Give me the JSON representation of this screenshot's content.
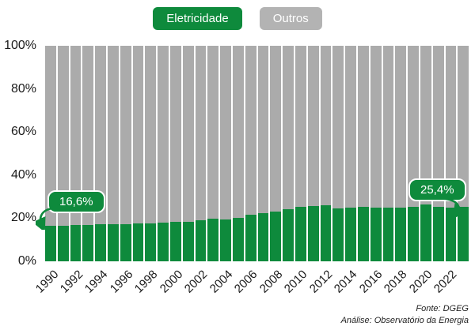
{
  "chart_data": {
    "type": "bar",
    "stacked": true,
    "unit": "%",
    "x": [
      1990,
      1991,
      1992,
      1993,
      1994,
      1995,
      1996,
      1997,
      1998,
      1999,
      2000,
      2001,
      2002,
      2003,
      2004,
      2005,
      2006,
      2007,
      2008,
      2009,
      2010,
      2011,
      2012,
      2013,
      2014,
      2015,
      2016,
      2017,
      2018,
      2019,
      2020,
      2021,
      2022,
      2023
    ],
    "series": [
      {
        "name": "Eletricidade",
        "color": "#0e8a3c",
        "values": [
          16.6,
          16.6,
          16.9,
          17.0,
          17.3,
          17.4,
          17.2,
          17.5,
          17.6,
          17.9,
          18.2,
          18.5,
          19.2,
          19.7,
          19.6,
          20.0,
          21.5,
          22.5,
          23.1,
          24.1,
          25.2,
          25.5,
          26.0,
          24.6,
          24.8,
          25.2,
          24.9,
          24.9,
          24.9,
          25.2,
          26.2,
          25.2,
          25.0,
          25.4
        ]
      },
      {
        "name": "Outros",
        "color": "#ababab",
        "values": [
          83.4,
          83.4,
          83.1,
          83.0,
          82.7,
          82.6,
          82.8,
          82.5,
          82.4,
          82.1,
          81.8,
          81.5,
          80.8,
          80.3,
          80.4,
          80.0,
          78.5,
          77.5,
          76.9,
          75.9,
          74.8,
          74.5,
          74.0,
          75.4,
          75.2,
          74.8,
          75.1,
          75.1,
          75.1,
          74.8,
          73.8,
          74.8,
          75.0,
          74.6
        ]
      }
    ],
    "ylim": [
      0,
      100
    ],
    "ytick_labels": [
      "0%",
      "20%",
      "40%",
      "60%",
      "80%",
      "100%"
    ],
    "xtick_every": 2,
    "legend_position": "top",
    "annotations": [
      {
        "x": 1990,
        "label": "16,6%"
      },
      {
        "x": 2023,
        "label": "25,4%"
      }
    ]
  },
  "legend": {
    "items": [
      {
        "label": "Eletricidade",
        "color": "#0e8a3c"
      },
      {
        "label": "Outros",
        "color": "#b3b3b3"
      }
    ]
  },
  "footer": {
    "line1": "Fonte: DGEG",
    "line2": "Análise: Observatório da Energia"
  }
}
